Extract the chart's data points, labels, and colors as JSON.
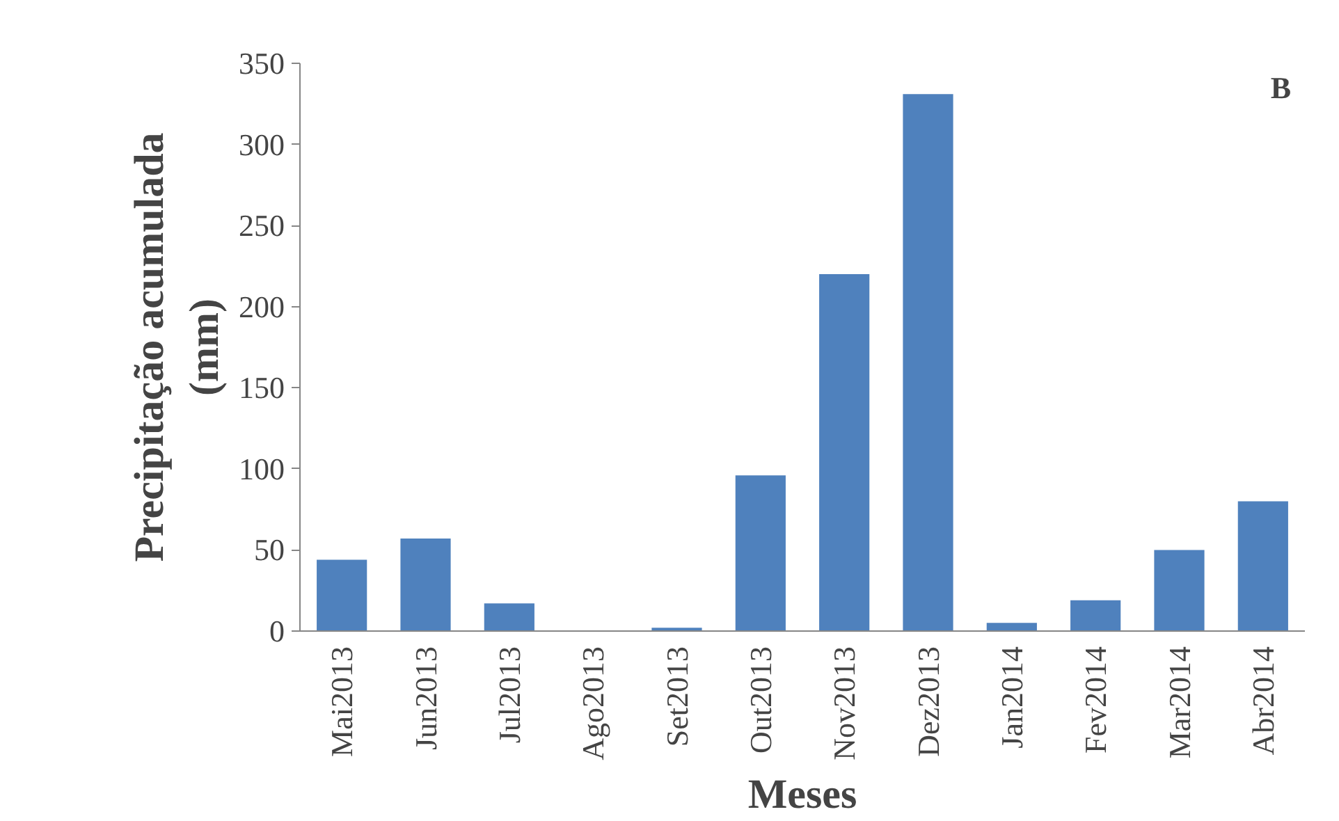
{
  "chart_data": {
    "type": "bar",
    "xlabel": "Meses",
    "ylabel": "Precipitação acumulada\n(mm)",
    "annotations": [
      "B"
    ],
    "categories": [
      "Mai2013",
      "Jun2013",
      "Jul2013",
      "Ago2013",
      "Set2013",
      "Out2013",
      "Nov2013",
      "Dez2013",
      "Jan2014",
      "Fev2014",
      "Mar2014",
      "Abr2014"
    ],
    "values": [
      44,
      57,
      17,
      0,
      2,
      96,
      220,
      331,
      5,
      19,
      50,
      80
    ],
    "color": "#4f81bd",
    "ylim": [
      0,
      350
    ],
    "yticks": [
      0,
      50,
      100,
      150,
      200,
      250,
      300,
      350
    ],
    "grid": false
  }
}
